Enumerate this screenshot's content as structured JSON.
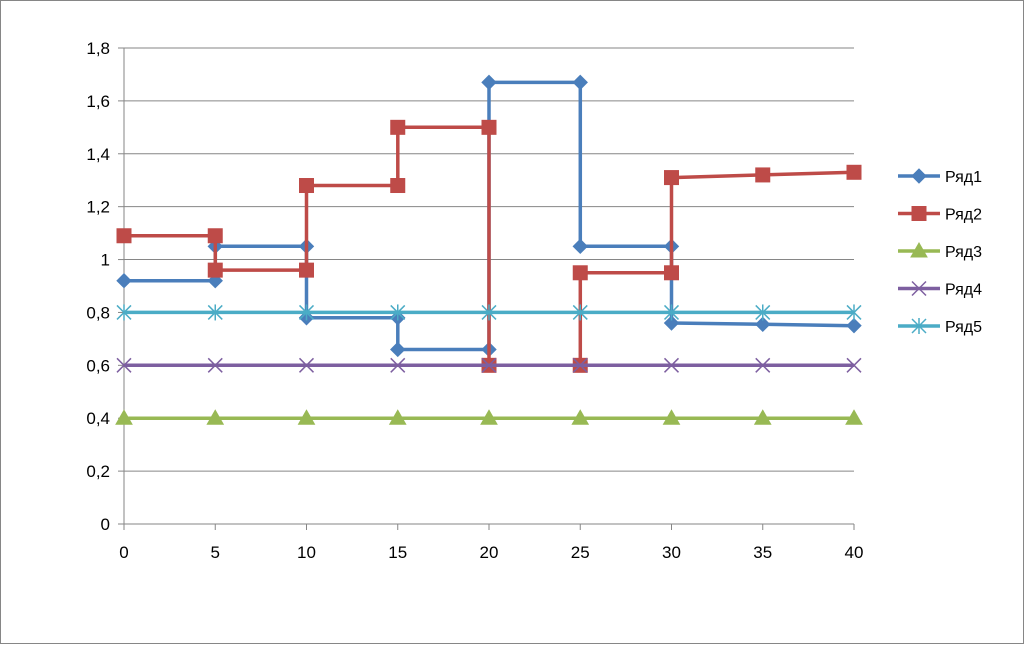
{
  "chart_data": {
    "type": "line",
    "step": true,
    "title": "",
    "xlabel": "",
    "ylabel": "",
    "xlim": [
      0,
      40
    ],
    "ylim": [
      0,
      1.8
    ],
    "x_ticks": [
      "0",
      "5",
      "10",
      "15",
      "20",
      "25",
      "30",
      "35",
      "40"
    ],
    "y_ticks": [
      "0",
      "0,2",
      "0,4",
      "0,6",
      "0,8",
      "1",
      "1,2",
      "1,4",
      "1,6",
      "1,8"
    ],
    "y_tick_values": [
      0,
      0.2,
      0.4,
      0.6,
      0.8,
      1.0,
      1.2,
      1.4,
      1.6,
      1.8
    ],
    "grid": "horizontal",
    "legend_position": "right",
    "series": [
      {
        "name": "Ряд1",
        "color": "#4a7ebb",
        "marker": "diamond",
        "points": [
          [
            0,
            0.92
          ],
          [
            5,
            0.92
          ],
          [
            5,
            1.05
          ],
          [
            10,
            1.05
          ],
          [
            10,
            0.78
          ],
          [
            15,
            0.78
          ],
          [
            15,
            0.66
          ],
          [
            20,
            0.66
          ],
          [
            20,
            1.67
          ],
          [
            25,
            1.67
          ],
          [
            25,
            1.05
          ],
          [
            30,
            1.05
          ],
          [
            30,
            0.76
          ],
          [
            35,
            0.755
          ],
          [
            40,
            0.75
          ]
        ]
      },
      {
        "name": "Ряд2",
        "color": "#be4b48",
        "marker": "square",
        "points": [
          [
            0,
            1.09
          ],
          [
            5,
            1.09
          ],
          [
            5,
            0.96
          ],
          [
            10,
            0.96
          ],
          [
            10,
            1.28
          ],
          [
            15,
            1.28
          ],
          [
            15,
            1.5
          ],
          [
            20,
            1.5
          ],
          [
            20,
            0.6
          ],
          [
            25,
            0.6
          ],
          [
            25,
            0.95
          ],
          [
            30,
            0.95
          ],
          [
            30,
            1.31
          ],
          [
            35,
            1.32
          ],
          [
            40,
            1.33
          ]
        ]
      },
      {
        "name": "Ряд3",
        "color": "#98b954",
        "marker": "triangle",
        "points": [
          [
            0,
            0.4
          ],
          [
            5,
            0.4
          ],
          [
            10,
            0.4
          ],
          [
            15,
            0.4
          ],
          [
            20,
            0.4
          ],
          [
            25,
            0.4
          ],
          [
            30,
            0.4
          ],
          [
            35,
            0.4
          ],
          [
            40,
            0.4
          ]
        ]
      },
      {
        "name": "Ряд4",
        "color": "#7d5fa0",
        "marker": "x",
        "points": [
          [
            0,
            0.6
          ],
          [
            5,
            0.6
          ],
          [
            10,
            0.6
          ],
          [
            15,
            0.6
          ],
          [
            20,
            0.6
          ],
          [
            25,
            0.6
          ],
          [
            30,
            0.6
          ],
          [
            35,
            0.6
          ],
          [
            40,
            0.6
          ]
        ]
      },
      {
        "name": "Ряд5",
        "color": "#4bacc6",
        "marker": "star",
        "points": [
          [
            0,
            0.8
          ],
          [
            5,
            0.8
          ],
          [
            10,
            0.8
          ],
          [
            15,
            0.8
          ],
          [
            20,
            0.8
          ],
          [
            25,
            0.8
          ],
          [
            30,
            0.8
          ],
          [
            35,
            0.8
          ],
          [
            40,
            0.8
          ]
        ]
      }
    ]
  }
}
